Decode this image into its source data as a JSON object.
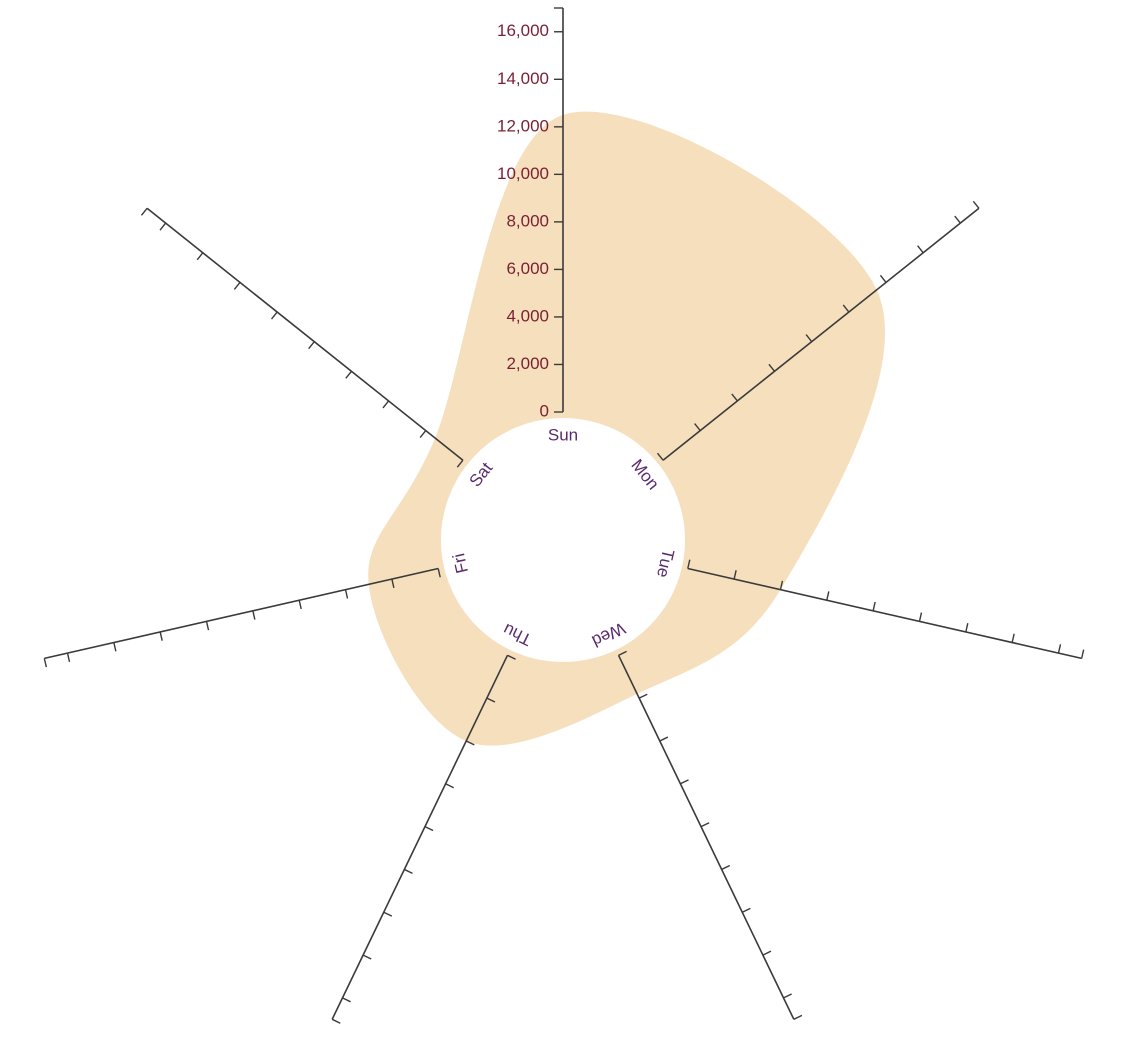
{
  "chart_data": {
    "type": "area",
    "title": "",
    "categories": [
      "Sun",
      "Mon",
      "Tue",
      "Wed",
      "Thu",
      "Fri",
      "Sat"
    ],
    "values": [
      12500,
      11500,
      4000,
      1800,
      4000,
      3000,
      1500
    ],
    "r_range": [
      0,
      17000
    ],
    "r_ticks": [
      0,
      2000,
      4000,
      6000,
      8000,
      10000,
      12000,
      14000,
      16000
    ],
    "tick_labels": [
      "0",
      "2,000",
      "4,000",
      "6,000",
      "8,000",
      "10,000",
      "12,000",
      "14,000",
      "16,000"
    ],
    "grid": false,
    "legend": "none",
    "fill_color": "#f5dfbd",
    "axis_color": "#3a3a3a",
    "tick_label_color": "#7a1f33",
    "category_label_color": "#5a2a6e"
  }
}
